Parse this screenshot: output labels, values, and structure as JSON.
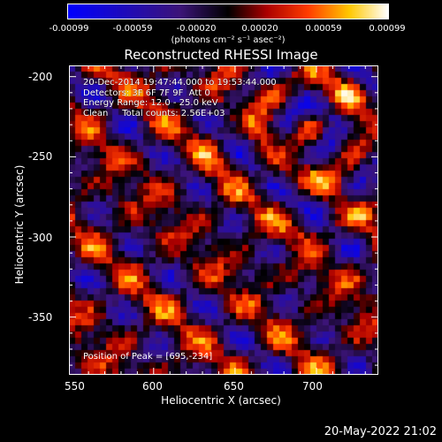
{
  "colorbar": {
    "ticks": [
      "-0.00099",
      "-0.00059",
      "-0.00020",
      "0.00020",
      "0.00059",
      "0.00099"
    ],
    "units": "(photons cm⁻² s⁻¹ asec⁻²)",
    "range": [
      -0.00099,
      0.00099
    ]
  },
  "chart_data": {
    "type": "heatmap",
    "title": "Reconstructed RHESSI Image",
    "xlabel": "Heliocentric X (arcsec)",
    "ylabel": "Heliocentric Y (arcsec)",
    "xlim": [
      548,
      738
    ],
    "ylim": [
      -386,
      -193
    ],
    "x_ticks": [
      "550",
      "600",
      "650",
      "700"
    ],
    "y_ticks": [
      "-200",
      "-250",
      "-300",
      "-350"
    ],
    "colormap": "hot-blue",
    "peak": [
      695,
      -234
    ]
  },
  "annotations": {
    "lines": [
      "20-Dec-2014 19:47:44.000 to 19:53:44.000",
      "Detectors: 3F 6F 7F 9F  Att 0",
      "Energy Range: 12.0 - 25.0 keV",
      "Clean     Total counts: 2.56E+03"
    ],
    "peak_text": "Position of Peak = [695,-234]"
  },
  "footer": {
    "timestamp": "20-May-2022 21:02"
  }
}
